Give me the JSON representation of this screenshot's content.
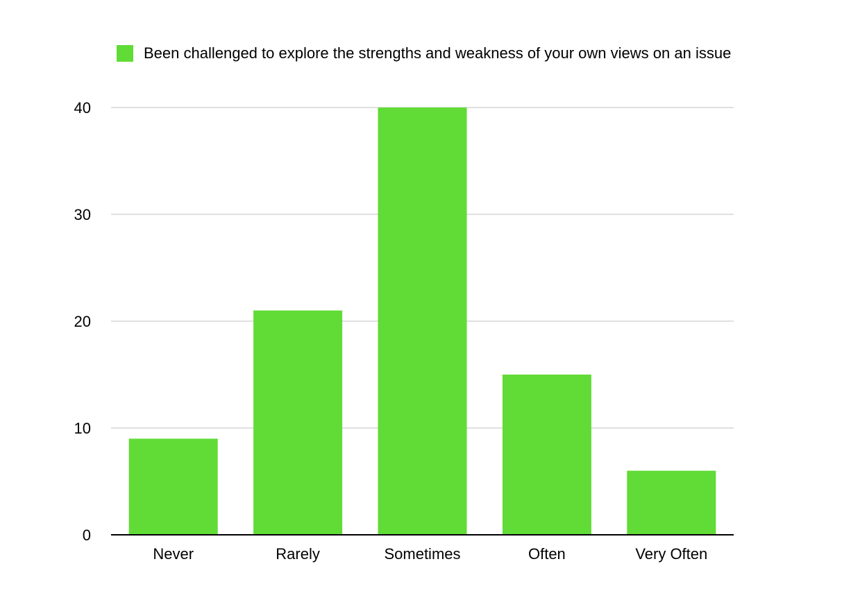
{
  "chart_data": {
    "type": "bar",
    "title": "",
    "xlabel": "",
    "ylabel": "",
    "categories": [
      "Never",
      "Rarely",
      "Sometimes",
      "Often",
      "Very Often"
    ],
    "series": [
      {
        "name": "Been challenged to explore the strengths and weakness of your own views on an issue",
        "values": [
          9,
          21,
          40,
          15,
          6
        ],
        "color": "#61db36"
      }
    ],
    "ylim": [
      0,
      40
    ],
    "yticks": [
      0,
      10,
      20,
      30,
      40
    ],
    "grid": true,
    "legend_position": "top"
  },
  "colors": {
    "bar": "#61db36",
    "grid": "#c2c2c2",
    "axis": "#000000"
  }
}
